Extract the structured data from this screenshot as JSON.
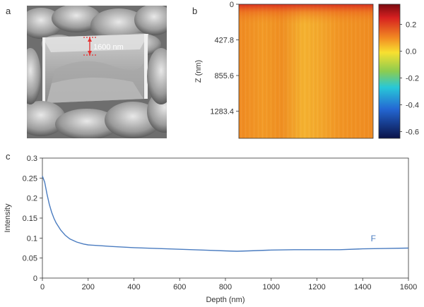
{
  "panels": {
    "a": "a",
    "b": "b",
    "c": "c"
  },
  "sem": {
    "scale_label": "1600 nm"
  },
  "heatmap": {
    "ylabel": "Z (nm)",
    "yticks": [
      "0",
      "427.8",
      "855.6",
      "1283.4"
    ],
    "colorbar_ticks": [
      "0.2",
      "0.0",
      "-0.2",
      "-0.4",
      "-0.6"
    ],
    "colorbar_range": [
      -0.65,
      0.35
    ]
  },
  "chart_data": {
    "type": "line",
    "xlabel": "Depth (nm)",
    "ylabel": "Intensity",
    "xlim": [
      0,
      1600
    ],
    "ylim": [
      0,
      0.3
    ],
    "xticks": [
      "0",
      "200",
      "400",
      "600",
      "800",
      "1000",
      "1200",
      "1400",
      "1600"
    ],
    "yticks": [
      "0",
      "0.05",
      "0.1",
      "0.15",
      "0.2",
      "0.25",
      "0.3"
    ],
    "series": [
      {
        "name": "F",
        "color": "#4a7cc0",
        "x": [
          0,
          10,
          20,
          30,
          40,
          50,
          60,
          80,
          100,
          120,
          150,
          180,
          200,
          250,
          300,
          400,
          500,
          600,
          700,
          800,
          850,
          900,
          1000,
          1100,
          1200,
          1300,
          1400,
          1500,
          1600
        ],
        "y": [
          0.255,
          0.24,
          0.21,
          0.185,
          0.165,
          0.15,
          0.138,
          0.12,
          0.107,
          0.098,
          0.09,
          0.085,
          0.083,
          0.081,
          0.079,
          0.076,
          0.074,
          0.072,
          0.07,
          0.068,
          0.067,
          0.068,
          0.07,
          0.071,
          0.071,
          0.071,
          0.073,
          0.074,
          0.075
        ]
      }
    ]
  }
}
